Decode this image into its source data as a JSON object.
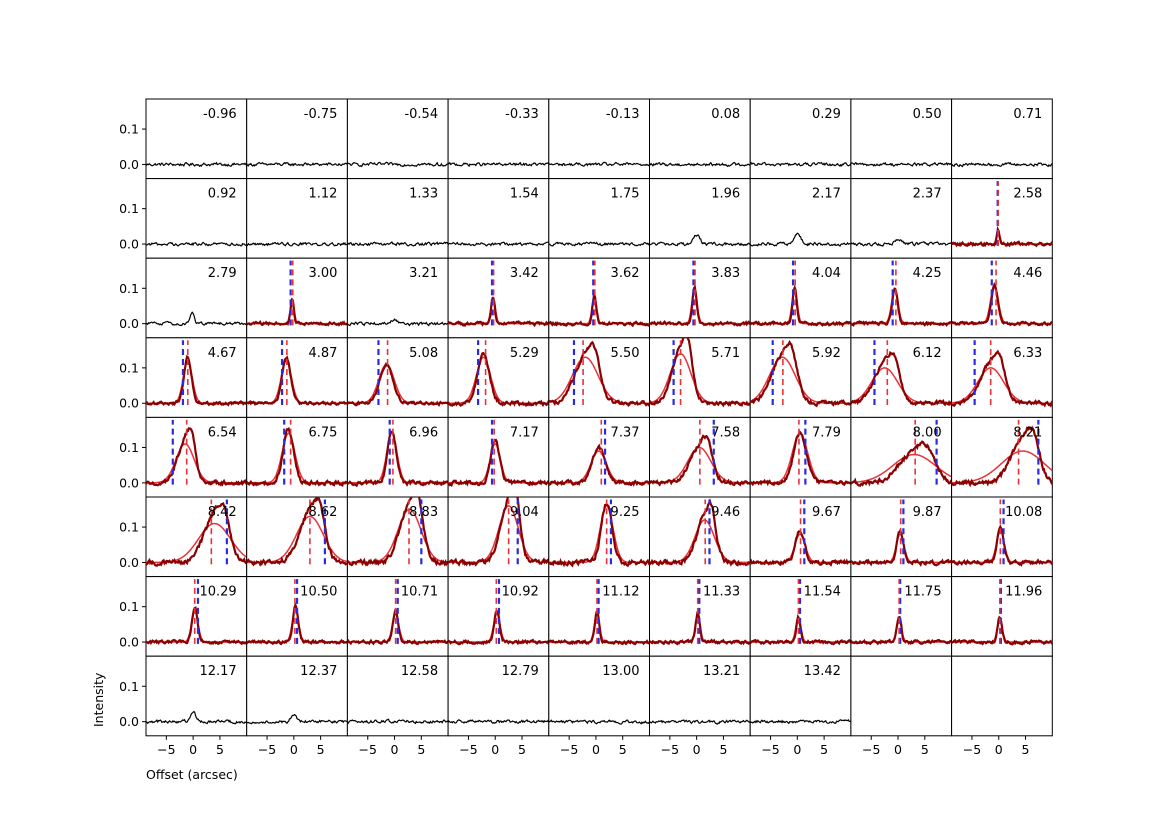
{
  "figure": {
    "xlabel": "Offset (arcsec)",
    "ylabel": "Intensity"
  },
  "chart_data": {
    "type": "line",
    "layout": "small-multiples",
    "rows": 8,
    "cols": 9,
    "xlabel": "Offset (arcsec)",
    "ylabel": "Intensity",
    "xlim": [
      -8.8,
      10
    ],
    "ylim": [
      -0.04,
      0.185
    ],
    "xticks": [
      -5,
      0,
      5
    ],
    "xtick_labels": [
      "−5",
      "0",
      "5"
    ],
    "yticks": [
      0.0,
      0.1
    ],
    "ytick_labels": [
      "0.0",
      "0.1"
    ],
    "series_colors": {
      "data": "#000000",
      "data_fit_region": "#8b0000",
      "model": "#e8323a",
      "peak_marker": "#e8323a",
      "edge_marker": "#2b2bdc"
    },
    "panels": [
      {
        "label": "-0.96",
        "fit": false
      },
      {
        "label": "-0.75",
        "fit": false
      },
      {
        "label": "-0.54",
        "fit": false
      },
      {
        "label": "-0.33",
        "fit": false
      },
      {
        "label": "-0.13",
        "fit": false
      },
      {
        "label": "0.08",
        "fit": false
      },
      {
        "label": "0.29",
        "fit": false
      },
      {
        "label": "0.50",
        "fit": false
      },
      {
        "label": "0.71",
        "fit": false
      },
      {
        "label": "0.92",
        "fit": false
      },
      {
        "label": "1.12",
        "fit": false
      },
      {
        "label": "1.33",
        "fit": false
      },
      {
        "label": "1.54",
        "fit": false
      },
      {
        "label": "1.75",
        "fit": false
      },
      {
        "label": "1.96",
        "fit": false,
        "bump": {
          "center": 0.0,
          "amp": 0.025,
          "width": 0.6
        }
      },
      {
        "label": "2.17",
        "fit": false,
        "bump": {
          "center": 0.0,
          "amp": 0.03,
          "width": 0.6
        }
      },
      {
        "label": "2.37",
        "fit": false,
        "bump": {
          "center": 0.0,
          "amp": 0.015,
          "width": 0.6
        }
      },
      {
        "label": "2.58",
        "fit": true,
        "peak": {
          "center": -0.1,
          "amp": 0.04,
          "width": 0.25
        },
        "model_amp": 0.04,
        "red": -0.1,
        "blue": -0.2,
        "noise": 0.008
      },
      {
        "label": "2.79",
        "fit": false,
        "bump": {
          "center": -0.2,
          "amp": 0.03,
          "width": 0.4
        }
      },
      {
        "label": "3.00",
        "fit": true,
        "peak": {
          "center": -0.3,
          "amp": 0.07,
          "width": 0.3
        },
        "model_amp": 0.07,
        "red": -0.2,
        "blue": -0.6,
        "noise": 0.008
      },
      {
        "label": "3.21",
        "fit": false,
        "bump": {
          "center": 0.0,
          "amp": 0.01,
          "width": 0.6
        }
      },
      {
        "label": "3.42",
        "fit": true,
        "peak": {
          "center": -0.4,
          "amp": 0.075,
          "width": 0.35
        },
        "model_amp": 0.075,
        "red": -0.3,
        "blue": -0.6,
        "noise": 0.008
      },
      {
        "label": "3.62",
        "fit": true,
        "peak": {
          "center": -0.3,
          "amp": 0.08,
          "width": 0.35
        },
        "model_amp": 0.08,
        "red": -0.2,
        "blue": -0.5,
        "noise": 0.008
      },
      {
        "label": "3.83",
        "fit": true,
        "peak": {
          "center": -0.4,
          "amp": 0.1,
          "width": 0.4
        },
        "model_amp": 0.1,
        "red": -0.3,
        "blue": -0.6,
        "noise": 0.008
      },
      {
        "label": "4.04",
        "fit": true,
        "peak": {
          "center": -0.5,
          "amp": 0.1,
          "width": 0.4
        },
        "model_amp": 0.1,
        "red": -0.4,
        "blue": -0.8,
        "noise": 0.008
      },
      {
        "label": "4.25",
        "fit": true,
        "peak": {
          "center": -0.6,
          "amp": 0.1,
          "width": 0.5
        },
        "model_amp": 0.1,
        "red": -0.4,
        "blue": -1.0,
        "noise": 0.008
      },
      {
        "label": "4.46",
        "fit": true,
        "peak": {
          "center": -0.8,
          "amp": 0.11,
          "width": 0.6
        },
        "model_amp": 0.11,
        "red": -0.5,
        "blue": -1.3,
        "noise": 0.008
      },
      {
        "label": "4.67",
        "fit": true,
        "peak": {
          "center": -1.0,
          "amp": 0.13,
          "width": 0.7
        },
        "model_amp": 0.12,
        "red": -1.0,
        "blue": -1.9,
        "noise": 0.008
      },
      {
        "label": "4.87",
        "fit": true,
        "peak": {
          "center": -1.4,
          "amp": 0.13,
          "width": 0.8
        },
        "model_amp": 0.12,
        "red": -1.3,
        "blue": -2.2,
        "noise": 0.008
      },
      {
        "label": "5.08",
        "fit": true,
        "peak": {
          "center": -1.5,
          "amp": 0.11,
          "width": 1.2
        },
        "model_amp": 0.11,
        "red": -1.3,
        "blue": -3.0,
        "noise": 0.008
      },
      {
        "label": "5.29",
        "fit": true,
        "peak": {
          "center": -2.2,
          "amp": 0.14,
          "width": 1.1
        },
        "model_amp": 0.13,
        "red": -1.8,
        "blue": -3.2,
        "noise": 0.01
      },
      {
        "label": "5.50",
        "fit": true,
        "peak": {
          "center": -2.0,
          "amp": 0.13,
          "width": 2.0
        },
        "model_amp": 0.13,
        "red": -2.4,
        "blue": -4.1,
        "noise": 0.01
      },
      {
        "label": "5.71",
        "fit": true,
        "peak": {
          "center": -3.0,
          "amp": 0.15,
          "width": 1.6
        },
        "model_amp": 0.14,
        "red": -3.0,
        "blue": -4.3,
        "noise": 0.01
      },
      {
        "label": "5.92",
        "fit": true,
        "peak": {
          "center": -2.8,
          "amp": 0.13,
          "width": 2.0
        },
        "model_amp": 0.13,
        "red": -2.7,
        "blue": -4.6,
        "noise": 0.01
      },
      {
        "label": "6.12",
        "fit": true,
        "peak": {
          "center": -2.5,
          "amp": 0.11,
          "width": 2.0
        },
        "model_amp": 0.1,
        "red": -2.0,
        "blue": -4.4,
        "noise": 0.01
      },
      {
        "label": "6.33",
        "fit": true,
        "peak": {
          "center": -1.5,
          "amp": 0.11,
          "width": 2.0
        },
        "model_amp": 0.1,
        "red": -1.5,
        "blue": -4.5,
        "noise": 0.01
      },
      {
        "label": "6.54",
        "fit": true,
        "peak": {
          "center": -1.5,
          "amp": 0.12,
          "width": 1.4
        },
        "model_amp": 0.11,
        "red": -1.2,
        "blue": -3.8,
        "noise": 0.01
      },
      {
        "label": "6.75",
        "fit": true,
        "peak": {
          "center": -1.0,
          "amp": 0.15,
          "width": 1.0
        },
        "model_amp": 0.14,
        "red": -0.6,
        "blue": -1.8,
        "noise": 0.01
      },
      {
        "label": "6.96",
        "fit": true,
        "peak": {
          "center": -0.5,
          "amp": 0.15,
          "width": 0.8
        },
        "model_amp": 0.14,
        "red": -0.3,
        "blue": -0.9,
        "noise": 0.01
      },
      {
        "label": "7.17",
        "fit": true,
        "peak": {
          "center": 0.0,
          "amp": 0.12,
          "width": 0.8
        },
        "model_amp": 0.11,
        "red": -0.2,
        "blue": -0.6,
        "noise": 0.01
      },
      {
        "label": "7.37",
        "fit": true,
        "peak": {
          "center": 0.5,
          "amp": 0.1,
          "width": 1.2
        },
        "model_amp": 0.09,
        "red": 1.0,
        "blue": 1.7,
        "noise": 0.01
      },
      {
        "label": "7.58",
        "fit": true,
        "peak": {
          "center": 0.5,
          "amp": 0.1,
          "width": 1.8
        },
        "model_amp": 0.1,
        "red": 0.6,
        "blue": 3.2,
        "noise": 0.01
      },
      {
        "label": "7.79",
        "fit": true,
        "peak": {
          "center": 0.5,
          "amp": 0.14,
          "width": 1.2
        },
        "model_amp": 0.14,
        "red": 0.3,
        "blue": 1.5,
        "noise": 0.01
      },
      {
        "label": "8.00",
        "fit": true,
        "peak": {
          "center": 3.0,
          "amp": 0.085,
          "width": 2.8
        },
        "model_amp": 0.08,
        "model_width": 4.0,
        "red": 3.2,
        "blue": 7.2,
        "noise": 0.012
      },
      {
        "label": "8.21",
        "fit": true,
        "peak": {
          "center": 4.5,
          "amp": 0.12,
          "width": 2.2
        },
        "model_amp": 0.09,
        "model_width": 4.0,
        "red": 3.7,
        "blue": 7.4,
        "noise": 0.012
      },
      {
        "label": "8.42",
        "fit": true,
        "peak": {
          "center": 4.0,
          "amp": 0.13,
          "width": 2.0
        },
        "model_amp": 0.11,
        "model_width": 3.0,
        "red": 3.4,
        "blue": 6.3,
        "noise": 0.012
      },
      {
        "label": "8.62",
        "fit": true,
        "peak": {
          "center": 3.0,
          "amp": 0.14,
          "width": 2.0
        },
        "model_amp": 0.13,
        "model_width": 2.5,
        "red": 3.0,
        "blue": 5.8,
        "noise": 0.012
      },
      {
        "label": "8.83",
        "fit": true,
        "peak": {
          "center": 2.8,
          "amp": 0.16,
          "width": 1.8
        },
        "model_amp": 0.15,
        "red": 2.7,
        "blue": 5.0,
        "noise": 0.012
      },
      {
        "label": "9.04",
        "fit": true,
        "peak": {
          "center": 2.5,
          "amp": 0.17,
          "width": 1.5
        },
        "model_amp": 0.16,
        "red": 2.5,
        "blue": 4.2,
        "noise": 0.012
      },
      {
        "label": "9.25",
        "fit": true,
        "peak": {
          "center": 2.0,
          "amp": 0.17,
          "width": 1.0
        },
        "model_amp": 0.16,
        "red": 2.0,
        "blue": 2.8,
        "noise": 0.012
      },
      {
        "label": "9.46",
        "fit": true,
        "peak": {
          "center": 1.5,
          "amp": 0.13,
          "width": 1.5
        },
        "model_amp": 0.12,
        "red": 1.6,
        "blue": 2.4,
        "noise": 0.012
      },
      {
        "label": "9.67",
        "fit": true,
        "peak": {
          "center": 0.5,
          "amp": 0.09,
          "width": 0.8
        },
        "model_amp": 0.08,
        "red": 0.6,
        "blue": 1.3,
        "noise": 0.01
      },
      {
        "label": "9.87",
        "fit": true,
        "peak": {
          "center": 0.4,
          "amp": 0.09,
          "width": 0.6
        },
        "model_amp": 0.08,
        "red": 0.5,
        "blue": 1.0,
        "noise": 0.01
      },
      {
        "label": "10.08",
        "fit": true,
        "peak": {
          "center": 0.3,
          "amp": 0.1,
          "width": 0.6
        },
        "model_amp": 0.09,
        "red": 0.3,
        "blue": 0.9,
        "noise": 0.01
      },
      {
        "label": "10.29",
        "fit": true,
        "peak": {
          "center": 0.3,
          "amp": 0.1,
          "width": 0.5
        },
        "model_amp": 0.09,
        "red": 0.3,
        "blue": 0.9,
        "noise": 0.008
      },
      {
        "label": "10.50",
        "fit": true,
        "peak": {
          "center": 0.3,
          "amp": 0.1,
          "width": 0.5
        },
        "model_amp": 0.09,
        "red": 0.2,
        "blue": 0.6,
        "noise": 0.008
      },
      {
        "label": "10.71",
        "fit": true,
        "peak": {
          "center": 0.2,
          "amp": 0.09,
          "width": 0.5
        },
        "model_amp": 0.08,
        "red": 0.2,
        "blue": 0.6,
        "noise": 0.008
      },
      {
        "label": "10.92",
        "fit": true,
        "peak": {
          "center": 0.3,
          "amp": 0.09,
          "width": 0.5
        },
        "model_amp": 0.08,
        "red": 0.2,
        "blue": 0.7,
        "noise": 0.008
      },
      {
        "label": "11.12",
        "fit": true,
        "peak": {
          "center": 0.2,
          "amp": 0.09,
          "width": 0.4
        },
        "model_amp": 0.08,
        "red": 0.2,
        "blue": 0.5,
        "noise": 0.008
      },
      {
        "label": "11.33",
        "fit": true,
        "peak": {
          "center": 0.2,
          "amp": 0.08,
          "width": 0.4
        },
        "model_amp": 0.07,
        "red": 0.2,
        "blue": 0.5,
        "noise": 0.008
      },
      {
        "label": "11.54",
        "fit": true,
        "peak": {
          "center": 0.2,
          "amp": 0.07,
          "width": 0.4
        },
        "model_amp": 0.07,
        "red": 0.2,
        "blue": 0.5,
        "noise": 0.008
      },
      {
        "label": "11.75",
        "fit": true,
        "peak": {
          "center": 0.2,
          "amp": 0.07,
          "width": 0.4
        },
        "model_amp": 0.06,
        "red": 0.2,
        "blue": 0.4,
        "noise": 0.008
      },
      {
        "label": "11.96",
        "fit": true,
        "peak": {
          "center": 0.2,
          "amp": 0.07,
          "width": 0.4
        },
        "model_amp": 0.06,
        "red": 0.2,
        "blue": 0.4,
        "noise": 0.008
      },
      {
        "label": "12.17",
        "fit": false,
        "bump": {
          "center": 0.0,
          "amp": 0.025,
          "width": 0.5
        }
      },
      {
        "label": "12.37",
        "fit": false,
        "bump": {
          "center": 0.0,
          "amp": 0.02,
          "width": 0.5
        }
      },
      {
        "label": "12.58",
        "fit": false
      },
      {
        "label": "12.79",
        "fit": false
      },
      {
        "label": "13.00",
        "fit": false
      },
      {
        "label": "13.21",
        "fit": false
      },
      {
        "label": "13.42",
        "fit": false
      },
      {
        "label": "",
        "empty": true
      },
      {
        "label": "",
        "empty": true
      }
    ]
  }
}
